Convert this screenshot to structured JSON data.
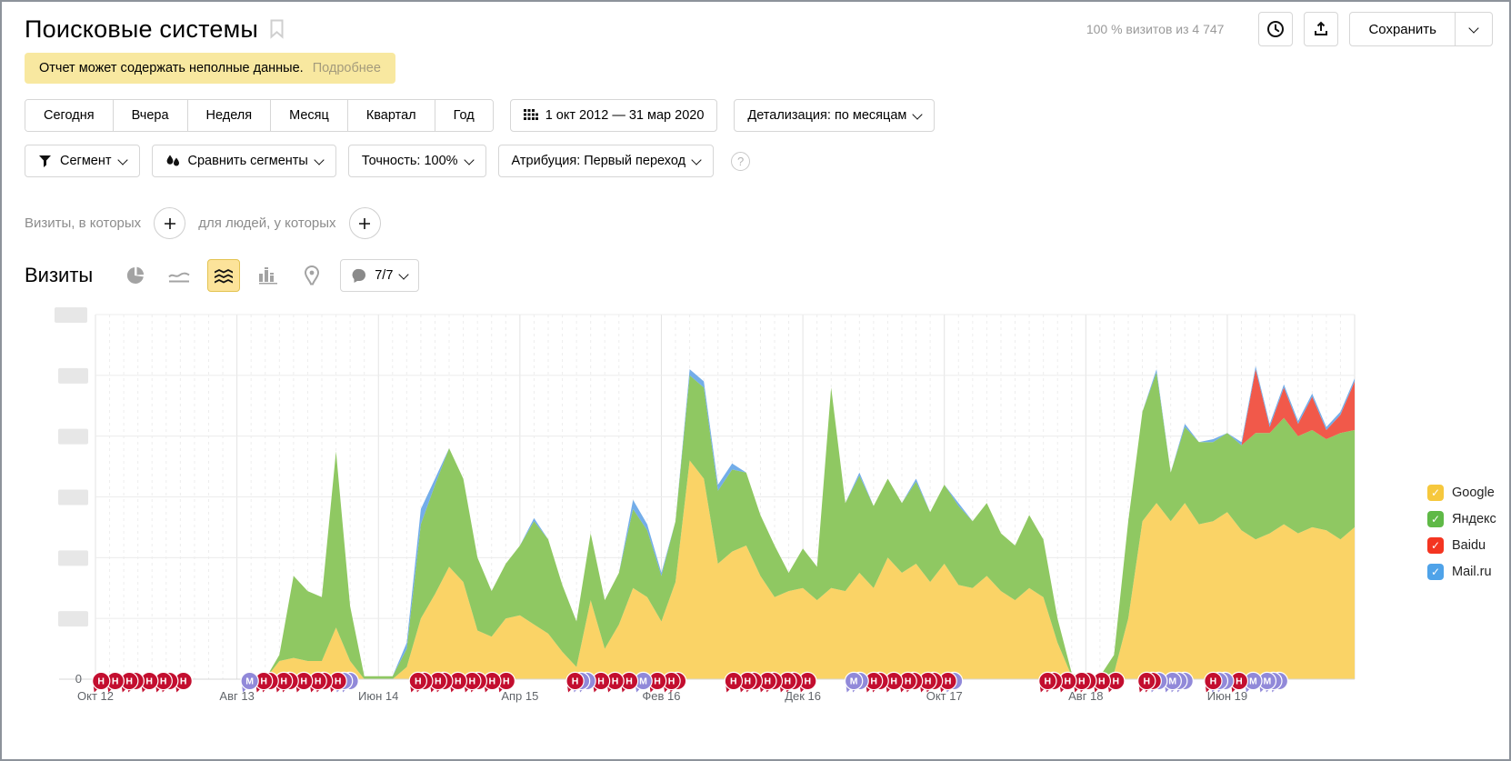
{
  "header": {
    "title": "Поисковые системы",
    "visits_info": "100 % визитов из 4 747",
    "save_label": "Сохранить"
  },
  "notice": {
    "text": "Отчет может содержать неполные данные.",
    "link": "Подробнее"
  },
  "toolbar": {
    "tabs": [
      "Сегодня",
      "Вчера",
      "Неделя",
      "Месяц",
      "Квартал",
      "Год"
    ],
    "date_range": "1 окт 2012 — 31 мар 2020",
    "detail": "Детализация: по месяцам"
  },
  "filters": {
    "segment": "Сегмент",
    "compare": "Сравнить сегменты",
    "accuracy": "Точность: 100%",
    "attribution": "Атрибуция: Первый переход",
    "help": "?"
  },
  "conditions": {
    "visits": "Визиты, в которых",
    "people": "для людей, у которых"
  },
  "metric": {
    "title": "Визиты",
    "goals": "7/7"
  },
  "chart_data": {
    "type": "area",
    "stacked": true,
    "months": 90,
    "tick_every": 10,
    "tick_labels": [
      "Окт 12",
      "Авг 13",
      "Июн 14",
      "Апр 15",
      "Фев 16",
      "Дек 16",
      "Окт 17",
      "Авг 18",
      "Июн 19"
    ],
    "ylim": [
      0,
      120
    ],
    "grid_step": 20,
    "y_zero_label": "0",
    "y_labels_redacted": true,
    "series": [
      {
        "name": "Google",
        "color": "#fad366",
        "values": [
          0,
          0,
          0,
          0,
          0,
          0,
          0,
          0,
          0,
          0,
          0,
          0,
          0,
          6,
          7,
          6,
          6,
          17,
          6,
          0,
          0,
          0,
          4,
          20,
          28,
          37,
          32,
          16,
          14,
          20,
          21,
          18,
          15,
          9,
          4,
          26,
          10,
          18,
          30,
          27,
          19,
          32,
          72,
          66,
          38,
          42,
          44,
          34,
          27,
          29,
          30,
          26,
          30,
          29,
          35,
          30,
          40,
          35,
          38,
          32,
          38,
          31,
          30,
          34,
          29,
          26,
          30,
          27,
          12,
          1,
          0,
          1,
          2,
          20,
          52,
          58,
          52,
          58,
          51,
          52,
          55,
          49,
          46,
          48,
          51,
          48,
          50,
          49,
          46,
          50
        ]
      },
      {
        "name": "Яндекс",
        "color": "#8fc862",
        "values": [
          0,
          0,
          0,
          0,
          0,
          0,
          0,
          0,
          0,
          0,
          0,
          0,
          0,
          2,
          27,
          23,
          21,
          58,
          18,
          1,
          1,
          1,
          6,
          31,
          36,
          39,
          34,
          24,
          15,
          18,
          23,
          34,
          31,
          22,
          15,
          22,
          16,
          17,
          26,
          22,
          15,
          20,
          28,
          30,
          24,
          27,
          24,
          20,
          17,
          6,
          13,
          11,
          66,
          29,
          32,
          27,
          26,
          23,
          27,
          23,
          26,
          26,
          22,
          24,
          19,
          18,
          24,
          19,
          8,
          1,
          0,
          0,
          6,
          32,
          36,
          43,
          16,
          25,
          27,
          26,
          26,
          28,
          35,
          33,
          35,
          32,
          32,
          30,
          35,
          32
        ]
      },
      {
        "name": "Baidu",
        "color": "#f1594a",
        "values": [
          0,
          0,
          0,
          0,
          0,
          0,
          0,
          0,
          0,
          0,
          0,
          0,
          0,
          0,
          0,
          0,
          0,
          0,
          0,
          0,
          0,
          0,
          0,
          0,
          0,
          0,
          0,
          0,
          0,
          0,
          0,
          0,
          0,
          0,
          0,
          0,
          0,
          0,
          0,
          0,
          0,
          0,
          0,
          0,
          0,
          0,
          0,
          0,
          0,
          0,
          0,
          0,
          0,
          0,
          0,
          0,
          0,
          0,
          0,
          0,
          0,
          0,
          0,
          0,
          0,
          0,
          0,
          0,
          0,
          0,
          0,
          0,
          0,
          0,
          0,
          0,
          0,
          0,
          0,
          0,
          0,
          0,
          21,
          2,
          10,
          4,
          11,
          3,
          6,
          16
        ]
      },
      {
        "name": "Mail.ru",
        "color": "#73ade9",
        "values": [
          0,
          0,
          0,
          0,
          0,
          0,
          0,
          0,
          0,
          0,
          0,
          0,
          0,
          0,
          0,
          0,
          0,
          0,
          0,
          0,
          0,
          0,
          2,
          5,
          2,
          0,
          0,
          0,
          0,
          0,
          0,
          1,
          0,
          0,
          0,
          0,
          0,
          0,
          3,
          2,
          1,
          0,
          2,
          2,
          2,
          2,
          0,
          0,
          0,
          0,
          0,
          0,
          0,
          0,
          1,
          0,
          0,
          0,
          1,
          0,
          0,
          1,
          0,
          0,
          0,
          0,
          0,
          0,
          0,
          0,
          0,
          0,
          0,
          0,
          0,
          1,
          0,
          1,
          0,
          1,
          0,
          1,
          1,
          1,
          1,
          1,
          1,
          1,
          1,
          1
        ]
      }
    ],
    "legend": [
      {
        "label": "Google",
        "color": "#f6c83d"
      },
      {
        "label": "Яндекс",
        "color": "#5fb947"
      },
      {
        "label": "Baidu",
        "color": "#f43521"
      },
      {
        "label": "Mail.ru",
        "color": "#4fa3e9"
      }
    ],
    "markers": {
      "colors": {
        "H": "#c30e2f",
        "M": "#9189d9"
      },
      "letters": {
        "H": "Н",
        "M": "М"
      },
      "groups": [
        {
          "month": 0.4,
          "seq": [
            "H",
            "H",
            "H",
            "h",
            "H",
            "H",
            "h",
            "H"
          ]
        },
        {
          "month": 10.9,
          "seq": [
            "M",
            "H",
            "h",
            "H",
            "h",
            "H",
            "H",
            "h",
            "H",
            "p",
            "p"
          ]
        },
        {
          "month": 22.8,
          "seq": [
            "H",
            "h",
            "H",
            "h",
            "H",
            "H",
            "h",
            "H",
            "H"
          ]
        },
        {
          "month": 33.9,
          "seq": [
            "H",
            "p",
            "p",
            "H",
            "H",
            "H",
            "M",
            "H",
            "H",
            "h"
          ]
        },
        {
          "month": 45.1,
          "seq": [
            "H",
            "H",
            "h",
            "H",
            "h",
            "H",
            "h",
            "H"
          ]
        },
        {
          "month": 53.6,
          "seq": [
            "M",
            "p",
            "H",
            "h",
            "H",
            "H",
            "h",
            "H",
            "h",
            "H",
            "p"
          ]
        },
        {
          "month": 67.3,
          "seq": [
            "H",
            "h",
            "H",
            "H",
            "h",
            "H",
            "H"
          ]
        },
        {
          "month": 74.3,
          "seq": [
            "H",
            "h",
            "p",
            "M",
            "p",
            "p"
          ]
        },
        {
          "month": 79.0,
          "seq": [
            "H",
            "p",
            "p",
            "H",
            "M",
            "M",
            "p",
            "p"
          ]
        }
      ]
    }
  }
}
